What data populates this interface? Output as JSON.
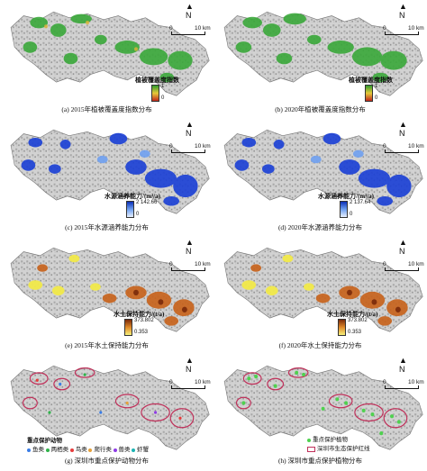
{
  "north_label": "N",
  "scale_zero": "0",
  "scale_label": "10 km",
  "panels": [
    {
      "caption": "(a) 2015年植被覆盖度指数分布",
      "legend_title": "植被覆盖度指数",
      "max": "1",
      "min": "0",
      "ramp_top": "#2e9b2e",
      "ramp_mid": "#e6c93a",
      "ramp_bottom": "#c0261b"
    },
    {
      "caption": "(b) 2020年植被覆盖度指数分布",
      "legend_title": "植被覆盖度指数",
      "max": "1",
      "min": "0",
      "ramp_top": "#2e9b2e",
      "ramp_mid": "#e6c93a",
      "ramp_bottom": "#c0261b"
    },
    {
      "caption": "(c) 2015年水源涵养能力分布",
      "legend_title": "水源涵养能力/(m³/a)",
      "max": "2 142.66",
      "min": "0",
      "ramp_top": "#0b2fb8",
      "ramp_mid": "#6fa0f0",
      "ramp_bottom": "#e8f0ff"
    },
    {
      "caption": "(d) 2020年水源涵养能力分布",
      "legend_title": "水源涵养能力/(m³/a)",
      "max": "2 137.64",
      "min": "0",
      "ramp_top": "#0b2fb8",
      "ramp_mid": "#6fa0f0",
      "ramp_bottom": "#e8f0ff"
    },
    {
      "caption": "(e) 2015年水土保持能力分布",
      "legend_title": "水土保持能力/(t/a)",
      "max": "373.802",
      "min": "0.353",
      "ramp_top": "#7a2a0a",
      "ramp_mid": "#e08a2a",
      "ramp_bottom": "#f6f07a"
    },
    {
      "caption": "(f) 2020年水土保持能力分布",
      "legend_title": "水土保持能力/(t/a)",
      "max": "373.802",
      "min": "0.353",
      "ramp_top": "#7a2a0a",
      "ramp_mid": "#e08a2a",
      "ramp_bottom": "#f6f07a"
    },
    {
      "caption": "(g) 深圳市重点保护动物分布"
    },
    {
      "caption": "(h) 深圳市重点保护植物分布"
    }
  ],
  "animal_legend": {
    "title": "重点保护动物",
    "items": [
      "鱼类",
      "两栖类",
      "鸟类",
      "爬行类",
      "兽类",
      "虾蟹"
    ]
  },
  "plant_legend": {
    "plant_label": "重点保护植物",
    "redline_label": "深圳市生态保护红线"
  },
  "colors": {
    "land": "#c8c8c8",
    "land_dark": "#9a9a9a",
    "veg_green": "#3aa83a",
    "water_blue": "#1a3fd6",
    "soil_orange": "#c8621a",
    "soil_yellow": "#f2ea4a",
    "redline": "#c0305a",
    "plant_green": "#4fd14f"
  }
}
